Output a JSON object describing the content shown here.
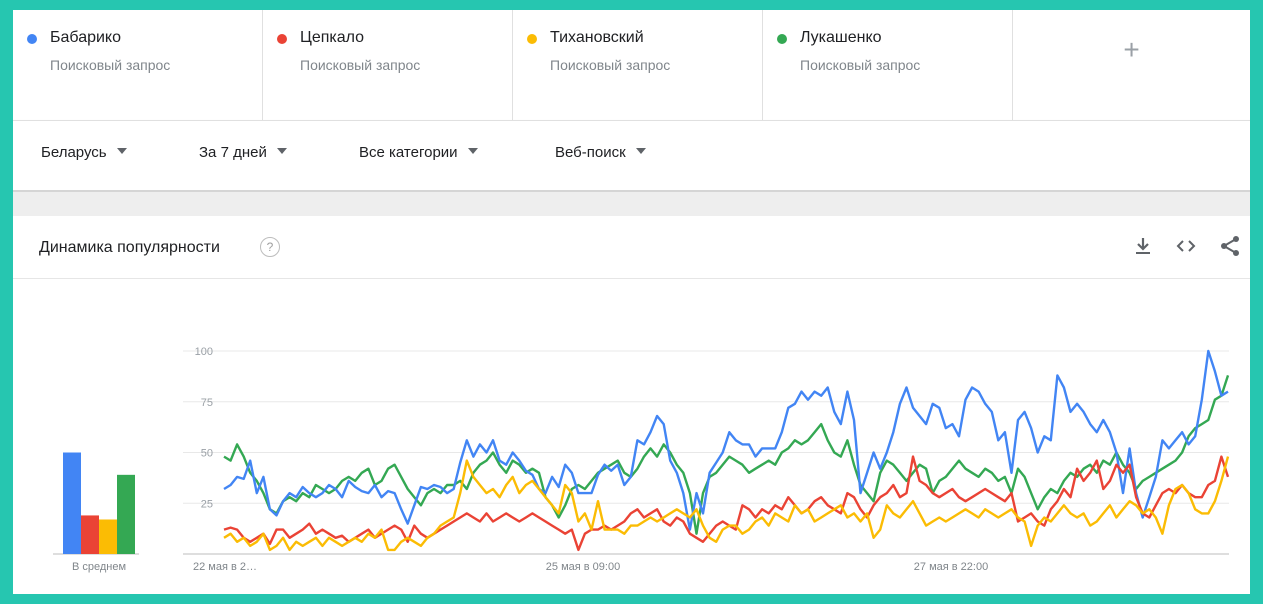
{
  "colors": {
    "blue": "#4285f4",
    "red": "#ea4335",
    "yellow": "#fbbc04",
    "green": "#34a853"
  },
  "terms": [
    {
      "name": "Бабарико",
      "sub": "Поисковый запрос",
      "color": "#4285f4"
    },
    {
      "name": "Цепкало",
      "sub": "Поисковый запрос",
      "color": "#ea4335"
    },
    {
      "name": "Тихановский",
      "sub": "Поисковый запрос",
      "color": "#fbbc04"
    },
    {
      "name": "Лукашенко",
      "sub": "Поисковый запрос",
      "color": "#34a853"
    }
  ],
  "add_term": "+",
  "filters": {
    "region": "Беларусь",
    "period": "За 7 дней",
    "category": "Все категории",
    "search_type": "Веб-поиск"
  },
  "card": {
    "title": "Динамика популярности",
    "help": "?"
  },
  "icons": [
    "download-icon",
    "embed-icon",
    "share-icon"
  ],
  "chart_data": {
    "type": "line",
    "title": "Динамика популярности",
    "ylim": [
      0,
      100
    ],
    "yticks": [
      25,
      50,
      75,
      100
    ],
    "grid": true,
    "x_tick_labels": [
      "22 мая в 2…",
      "25 мая в 09:00",
      "27 мая в 22:00"
    ],
    "average_bar": {
      "label": "В среднем",
      "type": "bar",
      "values": [
        50,
        19,
        17,
        39
      ]
    },
    "series": [
      {
        "name": "Бабарико",
        "color": "#4285f4",
        "values": [
          32,
          34,
          38,
          37,
          46,
          30,
          38,
          22,
          19,
          26,
          30,
          28,
          33,
          30,
          28,
          30,
          34,
          32,
          28,
          36,
          33,
          31,
          30,
          34,
          28,
          31,
          30,
          22,
          15,
          24,
          33,
          32,
          34,
          33,
          30,
          32,
          45,
          56,
          48,
          54,
          50,
          56,
          46,
          44,
          50,
          46,
          41,
          39,
          32,
          30,
          38,
          33,
          44,
          40,
          30,
          30,
          30,
          39,
          44,
          41,
          44,
          34,
          38,
          56,
          54,
          60,
          68,
          64,
          46,
          40,
          30,
          12,
          30,
          20,
          40,
          45,
          50,
          60,
          56,
          54,
          54,
          48,
          52,
          52,
          52,
          60,
          72,
          74,
          80,
          76,
          80,
          78,
          82,
          70,
          64,
          80,
          66,
          30,
          40,
          50,
          42,
          50,
          60,
          74,
          82,
          72,
          68,
          64,
          74,
          72,
          62,
          64,
          58,
          76,
          82,
          80,
          74,
          70,
          56,
          60,
          40,
          66,
          70,
          62,
          50,
          58,
          56,
          88,
          82,
          70,
          74,
          70,
          64,
          60,
          66,
          60,
          50,
          30,
          52,
          30,
          18,
          28,
          38,
          56,
          52,
          56,
          60,
          54,
          58,
          76,
          100,
          90,
          78,
          80
        ],
        "x_idx_offset": 0
      },
      {
        "name": "Цепкало",
        "color": "#ea4335",
        "values": [
          12,
          13,
          12,
          8,
          6,
          8,
          10,
          5,
          12,
          12,
          8,
          10,
          12,
          15,
          10,
          12,
          10,
          8,
          9,
          6,
          8,
          10,
          12,
          8,
          10,
          12,
          14,
          12,
          6,
          14,
          10,
          8,
          10,
          12,
          14,
          16,
          18,
          20,
          18,
          16,
          20,
          16,
          18,
          20,
          18,
          16,
          18,
          20,
          18,
          16,
          14,
          12,
          10,
          12,
          2,
          10,
          12,
          12,
          14,
          12,
          14,
          16,
          20,
          22,
          18,
          20,
          22,
          16,
          14,
          18,
          16,
          10,
          8,
          6,
          10,
          14,
          16,
          14,
          12,
          24,
          22,
          18,
          22,
          20,
          24,
          22,
          28,
          24,
          20,
          22,
          26,
          28,
          24,
          22,
          20,
          30,
          28,
          22,
          18,
          24,
          28,
          30,
          34,
          28,
          30,
          48,
          36,
          34,
          30,
          28,
          30,
          32,
          28,
          26,
          28,
          30,
          32,
          30,
          28,
          26,
          30,
          16,
          18,
          20,
          16,
          14,
          22,
          26,
          32,
          28,
          42,
          36,
          40,
          46,
          32,
          36,
          44,
          40,
          44,
          28,
          20,
          18,
          24,
          30,
          32,
          30,
          34,
          30,
          28,
          28,
          34,
          36,
          48,
          38
        ],
        "x_idx_offset": 0
      },
      {
        "name": "Тихановский",
        "color": "#fbbc04",
        "values": [
          8,
          10,
          6,
          8,
          4,
          6,
          10,
          2,
          4,
          8,
          2,
          6,
          4,
          6,
          8,
          4,
          8,
          6,
          4,
          6,
          8,
          6,
          10,
          8,
          12,
          2,
          2,
          6,
          8,
          6,
          4,
          8,
          10,
          14,
          16,
          18,
          30,
          46,
          38,
          34,
          30,
          32,
          28,
          34,
          38,
          30,
          34,
          36,
          32,
          28,
          24,
          20,
          34,
          30,
          16,
          20,
          12,
          26,
          12,
          12,
          12,
          10,
          14,
          14,
          16,
          18,
          16,
          18,
          20,
          22,
          20,
          18,
          22,
          14,
          8,
          6,
          12,
          14,
          14,
          10,
          12,
          16,
          18,
          14,
          20,
          18,
          16,
          24,
          20,
          22,
          16,
          18,
          20,
          22,
          24,
          18,
          20,
          16,
          20,
          8,
          12,
          24,
          20,
          18,
          22,
          26,
          20,
          14,
          16,
          18,
          16,
          18,
          20,
          22,
          20,
          18,
          22,
          20,
          18,
          20,
          22,
          18,
          16,
          4,
          14,
          18,
          16,
          20,
          24,
          20,
          18,
          20,
          14,
          16,
          20,
          24,
          18,
          22,
          26,
          24,
          20,
          22,
          18,
          10,
          24,
          32,
          34,
          30,
          22,
          20,
          20,
          26,
          36,
          48
        ],
        "x_idx_offset": 0
      },
      {
        "name": "Лукашенко",
        "color": "#34a853",
        "values": [
          48,
          46,
          54,
          48,
          40,
          36,
          30,
          22,
          20,
          26,
          28,
          26,
          30,
          28,
          34,
          32,
          30,
          32,
          36,
          38,
          36,
          40,
          42,
          34,
          36,
          42,
          44,
          38,
          32,
          28,
          24,
          30,
          32,
          30,
          34,
          34,
          36,
          32,
          40,
          44,
          46,
          50,
          44,
          40,
          46,
          44,
          40,
          42,
          40,
          28,
          24,
          18,
          24,
          32,
          34,
          32,
          36,
          40,
          42,
          44,
          46,
          40,
          38,
          42,
          48,
          52,
          48,
          54,
          50,
          44,
          40,
          30,
          10,
          30,
          38,
          40,
          44,
          48,
          46,
          44,
          40,
          42,
          44,
          46,
          44,
          50,
          52,
          56,
          54,
          56,
          60,
          64,
          56,
          50,
          48,
          56,
          44,
          34,
          30,
          26,
          40,
          46,
          44,
          40,
          36,
          40,
          44,
          42,
          30,
          36,
          38,
          42,
          46,
          42,
          40,
          38,
          42,
          40,
          36,
          38,
          30,
          42,
          38,
          30,
          22,
          28,
          32,
          30,
          36,
          40,
          38,
          42,
          44,
          40,
          46,
          44,
          50,
          44,
          40,
          32,
          36,
          38,
          40,
          42,
          44,
          46,
          50,
          58,
          62,
          64,
          66,
          76,
          78,
          88
        ],
        "x_idx_offset": 0
      }
    ]
  }
}
